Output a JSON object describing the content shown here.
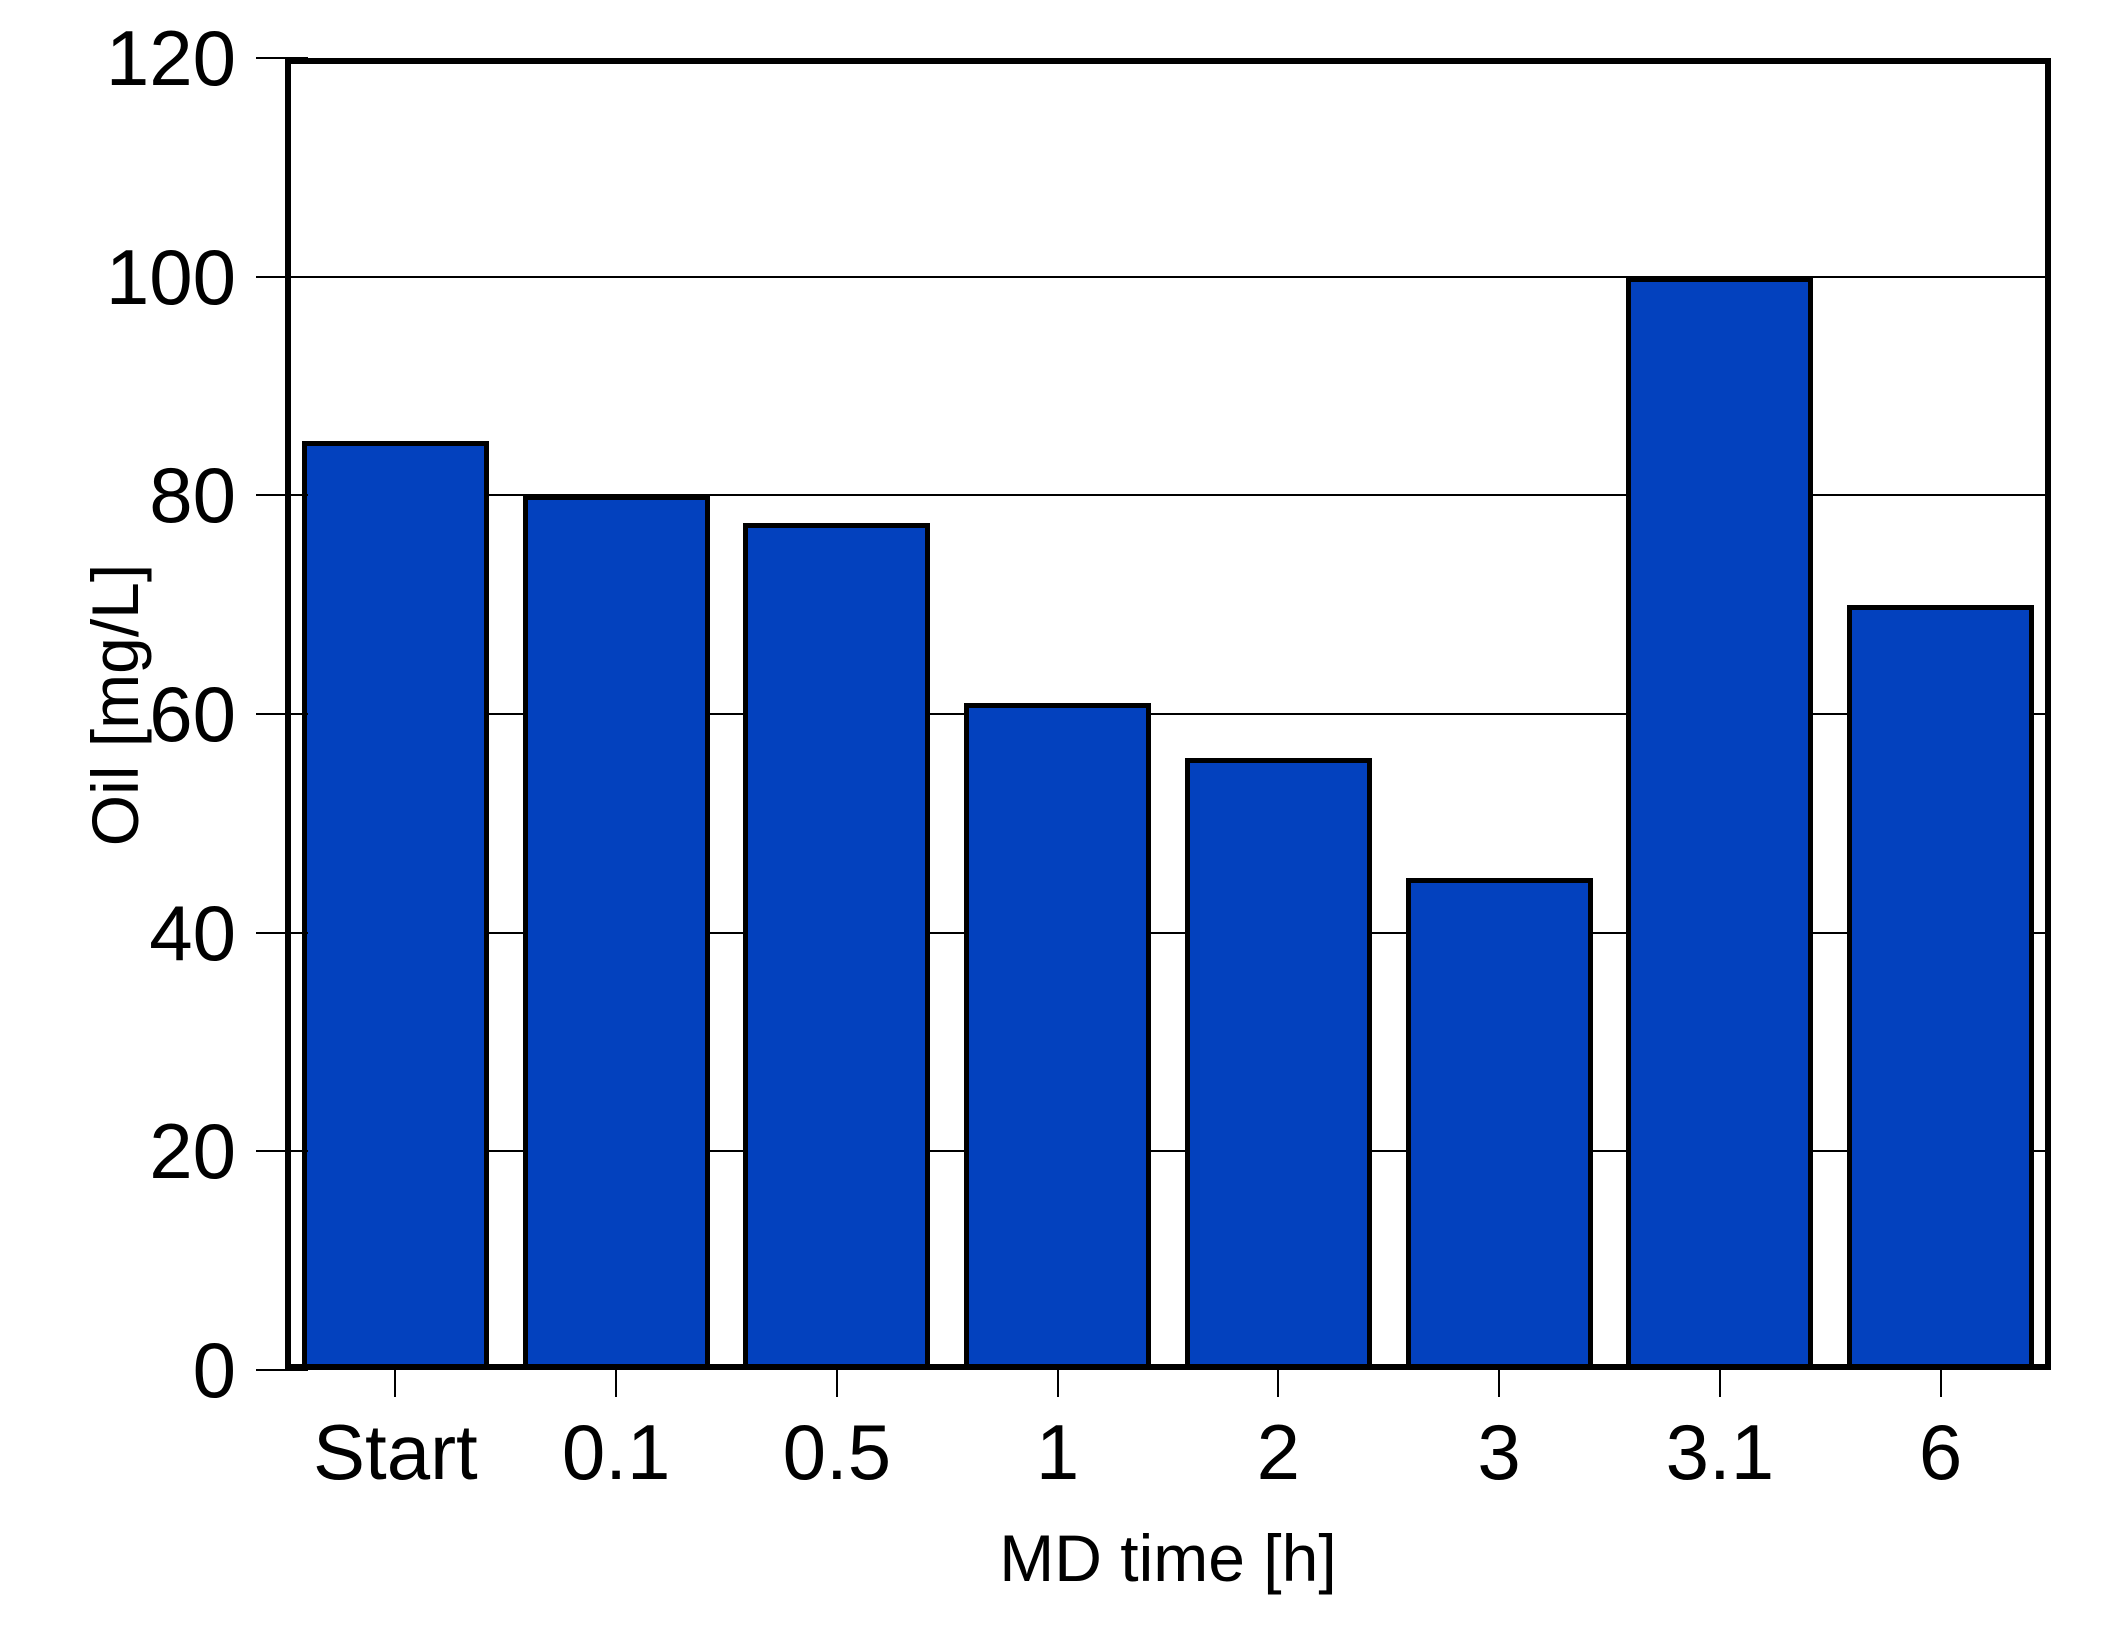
{
  "chart_data": {
    "type": "bar",
    "title": "",
    "categories": [
      "Start",
      "0.1",
      "0.5",
      "1",
      "2",
      "3",
      "3.1",
      "6"
    ],
    "values": [
      85,
      80,
      77.5,
      61,
      56,
      45,
      100,
      70
    ],
    "xlabel": "MD time [h]",
    "ylabel": "Oil [mg/L]",
    "ylim": [
      0,
      120
    ],
    "y_ticks": [
      0,
      20,
      40,
      60,
      80,
      100,
      120
    ],
    "grid": "horizontal",
    "legend": "none",
    "colors": {
      "bar_fill": "#0341BE",
      "bar_border": "#000000",
      "axis": "#000000",
      "text": "#000000",
      "background": "#FFFFFF"
    }
  }
}
